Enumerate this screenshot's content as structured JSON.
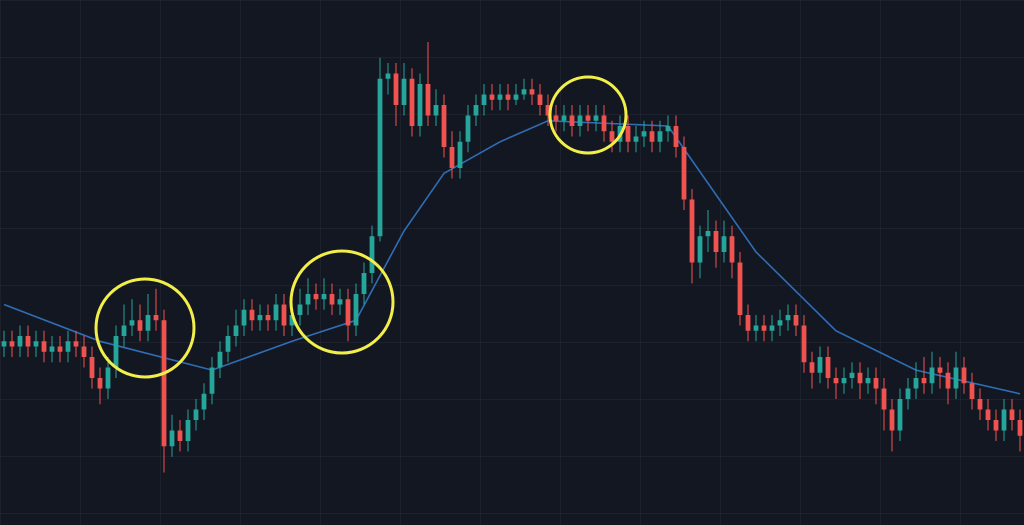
{
  "chart_data": {
    "type": "candlestick",
    "xlim": [
      -0.5,
      127.5
    ],
    "ylim": [
      0,
      100
    ],
    "up_color": "#26a69a",
    "down_color": "#ef5350",
    "open": [
      34,
      35,
      34,
      36,
      34,
      35,
      33,
      34,
      33,
      35,
      34,
      32,
      28,
      26,
      30,
      36,
      38,
      39,
      37,
      40,
      39,
      15,
      18,
      16,
      20,
      22,
      25,
      30,
      33,
      36,
      38,
      41,
      39,
      40,
      39,
      42,
      38,
      40,
      42,
      44,
      43,
      44,
      42,
      43,
      38,
      44,
      48,
      55,
      85,
      86,
      80,
      85,
      76,
      84,
      78,
      80,
      72,
      68,
      73,
      78,
      80,
      82,
      81,
      82,
      81,
      82,
      83,
      82,
      80,
      78,
      77,
      78,
      76,
      78,
      77,
      78,
      75,
      73,
      76,
      73,
      74,
      75,
      73,
      75,
      76,
      72,
      62,
      50,
      55,
      56,
      52,
      55,
      50,
      40,
      37,
      38,
      37,
      38,
      39,
      40,
      38,
      31,
      29,
      32,
      28,
      27,
      28,
      29,
      27,
      28,
      26,
      22,
      18,
      24,
      26,
      28,
      27,
      30,
      29,
      26,
      30,
      27,
      24,
      22,
      20,
      18,
      22,
      20
    ],
    "high": [
      37,
      37,
      38,
      38,
      37,
      37,
      36,
      36,
      37,
      37,
      36,
      34,
      30,
      32,
      38,
      42,
      43,
      42,
      44,
      45,
      41,
      21,
      20,
      22,
      24,
      27,
      32,
      35,
      38,
      41,
      43,
      43,
      42,
      42,
      44,
      44,
      42,
      45,
      47,
      46,
      47,
      46,
      45,
      45,
      46,
      50,
      57,
      89,
      88,
      88,
      88,
      87,
      86,
      92,
      83,
      82,
      75,
      75,
      80,
      82,
      84,
      84,
      84,
      84,
      84,
      85,
      85,
      84,
      82,
      80,
      80,
      80,
      80,
      80,
      80,
      80,
      77,
      78,
      78,
      76,
      77,
      77,
      77,
      78,
      78,
      74,
      64,
      57,
      60,
      58,
      58,
      57,
      52,
      42,
      40,
      40,
      40,
      41,
      42,
      42,
      40,
      33,
      34,
      34,
      30,
      30,
      31,
      31,
      30,
      30,
      28,
      24,
      26,
      28,
      31,
      32,
      33,
      32,
      31,
      33,
      32,
      29,
      26,
      24,
      22,
      24,
      24,
      22
    ],
    "low": [
      32,
      32,
      32,
      32,
      32,
      31,
      31,
      31,
      31,
      32,
      30,
      26,
      23,
      24,
      28,
      34,
      36,
      35,
      35,
      37,
      10,
      13,
      14,
      14,
      18,
      20,
      23,
      28,
      31,
      34,
      36,
      37,
      37,
      37,
      37,
      36,
      36,
      38,
      40,
      41,
      41,
      40,
      40,
      35,
      36,
      42,
      46,
      54,
      82,
      76,
      78,
      74,
      74,
      76,
      76,
      70,
      66,
      66,
      71,
      76,
      78,
      79,
      79,
      79,
      80,
      81,
      80,
      78,
      76,
      75,
      75,
      74,
      74,
      75,
      75,
      73,
      71,
      71,
      71,
      71,
      72,
      71,
      71,
      73,
      70,
      60,
      46,
      47,
      52,
      49,
      50,
      47,
      38,
      35,
      35,
      35,
      35,
      36,
      37,
      36,
      29,
      26,
      27,
      26,
      24,
      25,
      26,
      24,
      25,
      23,
      18,
      14,
      16,
      22,
      24,
      25,
      25,
      26,
      23,
      24,
      25,
      22,
      20,
      18,
      16,
      16,
      18,
      14
    ],
    "close": [
      35,
      34,
      36,
      34,
      35,
      33,
      34,
      33,
      35,
      34,
      32,
      28,
      26,
      30,
      36,
      38,
      39,
      37,
      40,
      39,
      15,
      18,
      16,
      20,
      22,
      25,
      30,
      33,
      36,
      38,
      41,
      39,
      40,
      39,
      42,
      38,
      40,
      42,
      44,
      43,
      44,
      42,
      43,
      38,
      44,
      48,
      55,
      85,
      86,
      80,
      85,
      76,
      84,
      78,
      80,
      72,
      68,
      73,
      78,
      80,
      82,
      81,
      82,
      81,
      82,
      83,
      82,
      80,
      78,
      77,
      78,
      76,
      78,
      77,
      78,
      75,
      73,
      76,
      73,
      74,
      75,
      73,
      75,
      76,
      72,
      62,
      50,
      55,
      56,
      52,
      55,
      50,
      40,
      37,
      38,
      37,
      38,
      39,
      40,
      38,
      31,
      29,
      32,
      28,
      27,
      28,
      29,
      27,
      28,
      26,
      22,
      18,
      24,
      26,
      28,
      27,
      30,
      29,
      26,
      30,
      27,
      24,
      22,
      20,
      18,
      22,
      20,
      17
    ],
    "ma": {
      "color": "#2f6db5",
      "x": [
        0,
        12,
        26,
        36,
        44,
        50,
        55,
        62,
        68,
        83,
        94,
        104,
        114,
        127
      ],
      "values": [
        42,
        35,
        29.5,
        35,
        39,
        56,
        67,
        73,
        77,
        76,
        52,
        37,
        29.5,
        25
      ]
    }
  }
}
